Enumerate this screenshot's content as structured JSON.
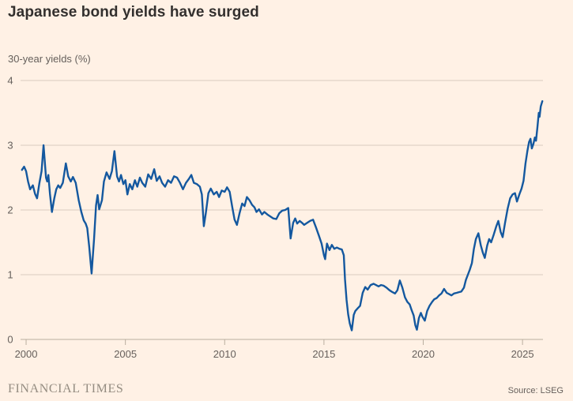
{
  "header": {
    "title": "Japanese bond yields have surged"
  },
  "chart": {
    "subtitle": "30-year yields (%)"
  },
  "footer": {
    "brand": "FINANCIAL TIMES",
    "source": "Source: LSEG"
  },
  "colors": {
    "background": "#fff1e5",
    "line": "#14589f",
    "gridline": "#d8ccbe",
    "axis": "#b9ae9f",
    "tick_text": "#66605c",
    "title_text": "#33302e",
    "wordmark": "#948c81"
  },
  "chart_data": {
    "type": "line",
    "title": "Japanese bond yields have surged",
    "xlabel": "",
    "ylabel": "30-year yields (%)",
    "xlim": [
      1999.72,
      2026.03
    ],
    "ylim": [
      0,
      4
    ],
    "x_ticks": [
      2000,
      2005,
      2010,
      2015,
      2020,
      2025
    ],
    "y_ticks": [
      0,
      1,
      2,
      3,
      4
    ],
    "grid": true,
    "legend_position": "none",
    "series": [
      {
        "name": "30-year Japanese government bond yield (%)",
        "points": [
          [
            1999.79,
            2.62
          ],
          [
            1999.9,
            2.67
          ],
          [
            2000.0,
            2.6
          ],
          [
            2000.1,
            2.44
          ],
          [
            2000.2,
            2.32
          ],
          [
            2000.34,
            2.38
          ],
          [
            2000.45,
            2.25
          ],
          [
            2000.55,
            2.18
          ],
          [
            2000.67,
            2.42
          ],
          [
            2000.78,
            2.6
          ],
          [
            2000.88,
            3.0
          ],
          [
            2001.0,
            2.5
          ],
          [
            2001.06,
            2.44
          ],
          [
            2001.12,
            2.54
          ],
          [
            2001.2,
            2.25
          ],
          [
            2001.3,
            1.97
          ],
          [
            2001.42,
            2.18
          ],
          [
            2001.52,
            2.32
          ],
          [
            2001.62,
            2.38
          ],
          [
            2001.72,
            2.34
          ],
          [
            2001.85,
            2.42
          ],
          [
            2002.0,
            2.72
          ],
          [
            2002.12,
            2.52
          ],
          [
            2002.25,
            2.44
          ],
          [
            2002.36,
            2.51
          ],
          [
            2002.5,
            2.42
          ],
          [
            2002.65,
            2.15
          ],
          [
            2002.78,
            1.97
          ],
          [
            2002.9,
            1.84
          ],
          [
            2003.0,
            1.79
          ],
          [
            2003.08,
            1.72
          ],
          [
            2003.18,
            1.43
          ],
          [
            2003.3,
            1.02
          ],
          [
            2003.42,
            1.55
          ],
          [
            2003.52,
            2.07
          ],
          [
            2003.6,
            2.23
          ],
          [
            2003.68,
            2.01
          ],
          [
            2003.82,
            2.15
          ],
          [
            2003.92,
            2.44
          ],
          [
            2004.05,
            2.58
          ],
          [
            2004.2,
            2.48
          ],
          [
            2004.32,
            2.6
          ],
          [
            2004.45,
            2.91
          ],
          [
            2004.58,
            2.52
          ],
          [
            2004.68,
            2.44
          ],
          [
            2004.78,
            2.54
          ],
          [
            2004.9,
            2.4
          ],
          [
            2005.0,
            2.46
          ],
          [
            2005.1,
            2.24
          ],
          [
            2005.22,
            2.4
          ],
          [
            2005.35,
            2.32
          ],
          [
            2005.48,
            2.46
          ],
          [
            2005.6,
            2.36
          ],
          [
            2005.73,
            2.5
          ],
          [
            2005.85,
            2.42
          ],
          [
            2006.0,
            2.36
          ],
          [
            2006.15,
            2.55
          ],
          [
            2006.3,
            2.48
          ],
          [
            2006.45,
            2.63
          ],
          [
            2006.58,
            2.45
          ],
          [
            2006.72,
            2.52
          ],
          [
            2006.85,
            2.42
          ],
          [
            2007.0,
            2.36
          ],
          [
            2007.15,
            2.46
          ],
          [
            2007.3,
            2.42
          ],
          [
            2007.45,
            2.52
          ],
          [
            2007.6,
            2.5
          ],
          [
            2007.75,
            2.42
          ],
          [
            2007.9,
            2.32
          ],
          [
            2008.05,
            2.42
          ],
          [
            2008.2,
            2.48
          ],
          [
            2008.32,
            2.54
          ],
          [
            2008.45,
            2.42
          ],
          [
            2008.6,
            2.4
          ],
          [
            2008.75,
            2.36
          ],
          [
            2008.85,
            2.24
          ],
          [
            2008.95,
            1.75
          ],
          [
            2009.05,
            1.95
          ],
          [
            2009.18,
            2.26
          ],
          [
            2009.3,
            2.33
          ],
          [
            2009.45,
            2.24
          ],
          [
            2009.6,
            2.28
          ],
          [
            2009.72,
            2.2
          ],
          [
            2009.85,
            2.3
          ],
          [
            2010.0,
            2.28
          ],
          [
            2010.12,
            2.35
          ],
          [
            2010.25,
            2.28
          ],
          [
            2010.38,
            2.05
          ],
          [
            2010.5,
            1.85
          ],
          [
            2010.62,
            1.77
          ],
          [
            2010.75,
            1.95
          ],
          [
            2010.88,
            2.1
          ],
          [
            2011.0,
            2.06
          ],
          [
            2011.12,
            2.2
          ],
          [
            2011.25,
            2.15
          ],
          [
            2011.38,
            2.08
          ],
          [
            2011.5,
            2.04
          ],
          [
            2011.6,
            1.97
          ],
          [
            2011.73,
            2.01
          ],
          [
            2011.88,
            1.93
          ],
          [
            2012.0,
            1.97
          ],
          [
            2012.15,
            1.93
          ],
          [
            2012.3,
            1.9
          ],
          [
            2012.45,
            1.87
          ],
          [
            2012.6,
            1.86
          ],
          [
            2012.75,
            1.95
          ],
          [
            2012.9,
            1.99
          ],
          [
            2013.05,
            2.0
          ],
          [
            2013.2,
            2.03
          ],
          [
            2013.32,
            1.56
          ],
          [
            2013.45,
            1.8
          ],
          [
            2013.55,
            1.87
          ],
          [
            2013.65,
            1.79
          ],
          [
            2013.78,
            1.83
          ],
          [
            2013.9,
            1.8
          ],
          [
            2014.0,
            1.77
          ],
          [
            2014.15,
            1.8
          ],
          [
            2014.3,
            1.83
          ],
          [
            2014.45,
            1.85
          ],
          [
            2014.6,
            1.73
          ],
          [
            2014.75,
            1.6
          ],
          [
            2014.88,
            1.48
          ],
          [
            2015.0,
            1.3
          ],
          [
            2015.06,
            1.24
          ],
          [
            2015.15,
            1.48
          ],
          [
            2015.28,
            1.38
          ],
          [
            2015.4,
            1.46
          ],
          [
            2015.52,
            1.4
          ],
          [
            2015.65,
            1.42
          ],
          [
            2015.78,
            1.4
          ],
          [
            2015.9,
            1.39
          ],
          [
            2016.0,
            1.3
          ],
          [
            2016.06,
            0.93
          ],
          [
            2016.14,
            0.61
          ],
          [
            2016.22,
            0.39
          ],
          [
            2016.3,
            0.25
          ],
          [
            2016.4,
            0.14
          ],
          [
            2016.5,
            0.38
          ],
          [
            2016.58,
            0.44
          ],
          [
            2016.7,
            0.48
          ],
          [
            2016.82,
            0.52
          ],
          [
            2016.95,
            0.72
          ],
          [
            2017.08,
            0.81
          ],
          [
            2017.2,
            0.77
          ],
          [
            2017.35,
            0.84
          ],
          [
            2017.5,
            0.86
          ],
          [
            2017.62,
            0.84
          ],
          [
            2017.75,
            0.82
          ],
          [
            2017.88,
            0.84
          ],
          [
            2018.0,
            0.83
          ],
          [
            2018.15,
            0.8
          ],
          [
            2018.3,
            0.76
          ],
          [
            2018.45,
            0.73
          ],
          [
            2018.58,
            0.71
          ],
          [
            2018.7,
            0.76
          ],
          [
            2018.82,
            0.91
          ],
          [
            2018.95,
            0.8
          ],
          [
            2019.08,
            0.65
          ],
          [
            2019.2,
            0.58
          ],
          [
            2019.32,
            0.54
          ],
          [
            2019.42,
            0.45
          ],
          [
            2019.52,
            0.37
          ],
          [
            2019.6,
            0.22
          ],
          [
            2019.68,
            0.15
          ],
          [
            2019.78,
            0.33
          ],
          [
            2019.88,
            0.41
          ],
          [
            2019.96,
            0.35
          ],
          [
            2020.08,
            0.29
          ],
          [
            2020.2,
            0.44
          ],
          [
            2020.32,
            0.52
          ],
          [
            2020.45,
            0.58
          ],
          [
            2020.55,
            0.62
          ],
          [
            2020.68,
            0.64
          ],
          [
            2020.8,
            0.68
          ],
          [
            2020.92,
            0.71
          ],
          [
            2021.05,
            0.78
          ],
          [
            2021.18,
            0.72
          ],
          [
            2021.3,
            0.7
          ],
          [
            2021.42,
            0.68
          ],
          [
            2021.55,
            0.71
          ],
          [
            2021.68,
            0.72
          ],
          [
            2021.8,
            0.73
          ],
          [
            2021.92,
            0.74
          ],
          [
            2022.05,
            0.8
          ],
          [
            2022.15,
            0.92
          ],
          [
            2022.25,
            1.0
          ],
          [
            2022.35,
            1.08
          ],
          [
            2022.45,
            1.18
          ],
          [
            2022.55,
            1.4
          ],
          [
            2022.65,
            1.55
          ],
          [
            2022.78,
            1.64
          ],
          [
            2022.9,
            1.45
          ],
          [
            2023.0,
            1.34
          ],
          [
            2023.1,
            1.26
          ],
          [
            2023.22,
            1.45
          ],
          [
            2023.32,
            1.55
          ],
          [
            2023.42,
            1.5
          ],
          [
            2023.55,
            1.62
          ],
          [
            2023.68,
            1.75
          ],
          [
            2023.78,
            1.83
          ],
          [
            2023.9,
            1.66
          ],
          [
            2024.0,
            1.58
          ],
          [
            2024.12,
            1.8
          ],
          [
            2024.25,
            2.02
          ],
          [
            2024.38,
            2.18
          ],
          [
            2024.5,
            2.24
          ],
          [
            2024.62,
            2.26
          ],
          [
            2024.72,
            2.13
          ],
          [
            2024.85,
            2.25
          ],
          [
            2024.95,
            2.33
          ],
          [
            2025.05,
            2.45
          ],
          [
            2025.15,
            2.72
          ],
          [
            2025.25,
            2.92
          ],
          [
            2025.33,
            3.05
          ],
          [
            2025.4,
            3.1
          ],
          [
            2025.47,
            2.95
          ],
          [
            2025.55,
            3.02
          ],
          [
            2025.62,
            3.12
          ],
          [
            2025.68,
            3.07
          ],
          [
            2025.75,
            3.28
          ],
          [
            2025.82,
            3.5
          ],
          [
            2025.86,
            3.44
          ],
          [
            2025.92,
            3.6
          ],
          [
            2026.0,
            3.68
          ]
        ]
      }
    ]
  }
}
